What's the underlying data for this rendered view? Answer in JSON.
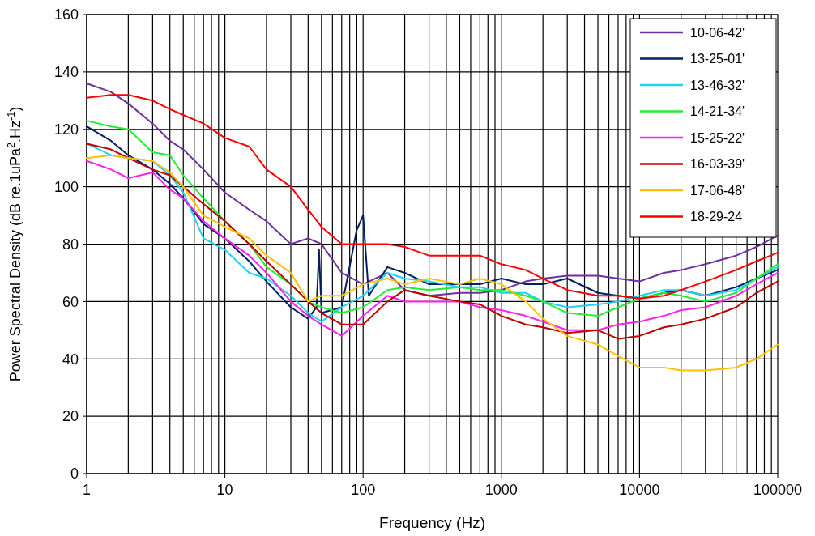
{
  "chart_data": {
    "type": "line",
    "xlabel": "Frequency (Hz)",
    "ylabel": "Power Spectral Density (dB re.1uPa$^{2}$.Hz$^{-1}$)",
    "log": "x",
    "grid": true,
    "legend": "top right",
    "marker": "none",
    "line_style": "solid",
    "xlim": [
      1,
      100000
    ],
    "xticks": [
      1,
      10,
      100,
      1000,
      10000,
      100000
    ],
    "ylim": [
      0,
      160
    ],
    "yticks": [
      0,
      20,
      40,
      60,
      80,
      100,
      120,
      140,
      160
    ],
    "x": [
      1,
      1.5,
      2,
      3,
      4,
      5,
      7,
      10,
      15,
      20,
      30,
      40,
      50,
      70,
      100,
      150,
      200,
      300,
      500,
      700,
      1000,
      1500,
      2000,
      3000,
      5000,
      7000,
      10000,
      15000,
      20000,
      30000,
      50000,
      70000,
      100000
    ],
    "series": [
      {
        "name": "10-06-42'",
        "color": "#7030a0",
        "values": [
          136,
          133,
          129,
          122,
          116,
          113,
          106,
          98,
          92,
          88,
          80,
          82,
          80,
          70,
          66,
          70,
          64,
          62,
          63,
          63,
          64,
          67,
          68,
          69,
          69,
          68,
          67,
          70,
          71,
          73,
          76,
          79,
          83
        ]
      },
      {
        "name": "13-25-01'",
        "color": "#002060",
        "x": [
          1,
          1.5,
          2,
          3,
          4,
          5,
          7,
          10,
          15,
          20,
          30,
          40,
          46,
          48,
          50,
          70,
          90,
          100,
          110,
          150,
          200,
          300,
          500,
          700,
          1000,
          1500,
          2000,
          3000,
          5000,
          7000,
          10000,
          15000,
          20000,
          30000,
          50000,
          70000,
          100000
        ],
        "values": [
          121,
          116,
          111,
          106,
          101,
          96,
          87,
          82,
          74,
          67,
          58,
          54,
          58,
          78,
          56,
          58,
          85,
          90,
          62,
          72,
          70,
          66,
          66,
          66,
          68,
          66,
          66,
          68,
          63,
          62,
          61,
          63,
          64,
          62,
          65,
          68,
          71
        ]
      },
      {
        "name": "13-46-32'",
        "color": "#1ed2f5",
        "values": [
          115,
          111,
          110,
          109,
          104,
          98,
          82,
          78,
          70,
          68,
          62,
          56,
          53,
          58,
          62,
          70,
          68,
          67,
          65,
          65,
          63,
          63,
          60,
          58,
          59,
          60,
          62,
          64,
          64,
          62,
          64,
          68,
          72
        ]
      },
      {
        "name": "14-21-34'",
        "color": "#22ee33",
        "values": [
          123,
          121,
          120,
          112,
          111,
          104,
          96,
          88,
          80,
          72,
          66,
          60,
          58,
          56,
          58,
          64,
          65,
          64,
          65,
          64,
          64,
          62,
          60,
          56,
          55,
          58,
          61,
          63,
          62,
          60,
          63,
          68,
          73
        ]
      },
      {
        "name": "15-25-22'",
        "color": "#ff22ee",
        "values": [
          109,
          106,
          103,
          105,
          99,
          96,
          88,
          82,
          76,
          70,
          60,
          55,
          52,
          48,
          55,
          62,
          60,
          60,
          60,
          58,
          57,
          55,
          53,
          50,
          50,
          52,
          53,
          55,
          57,
          58,
          62,
          66,
          70
        ]
      },
      {
        "name": "16-03-39'",
        "color": "#c00000",
        "values": [
          115,
          113,
          110,
          106,
          104,
          100,
          94,
          88,
          80,
          74,
          66,
          60,
          56,
          52,
          52,
          60,
          64,
          62,
          60,
          59,
          55,
          52,
          51,
          49,
          50,
          47,
          48,
          51,
          52,
          54,
          58,
          63,
          67
        ]
      },
      {
        "name": "17-06-48'",
        "color": "#ffc000",
        "values": [
          110,
          111,
          110,
          109,
          105,
          100,
          90,
          86,
          82,
          76,
          70,
          60,
          62,
          62,
          66,
          68,
          66,
          68,
          66,
          68,
          66,
          60,
          54,
          48,
          45,
          41,
          37,
          37,
          36,
          36,
          37,
          40,
          45
        ]
      },
      {
        "name": "18-29-24",
        "color": "#ff0000",
        "values": [
          131,
          132,
          132,
          130,
          127,
          125,
          122,
          117,
          114,
          106,
          100,
          92,
          86,
          80,
          80,
          80,
          79,
          76,
          76,
          76,
          73,
          71,
          68,
          64,
          62,
          62,
          61,
          62,
          64,
          67,
          71,
          74,
          77
        ]
      }
    ]
  }
}
